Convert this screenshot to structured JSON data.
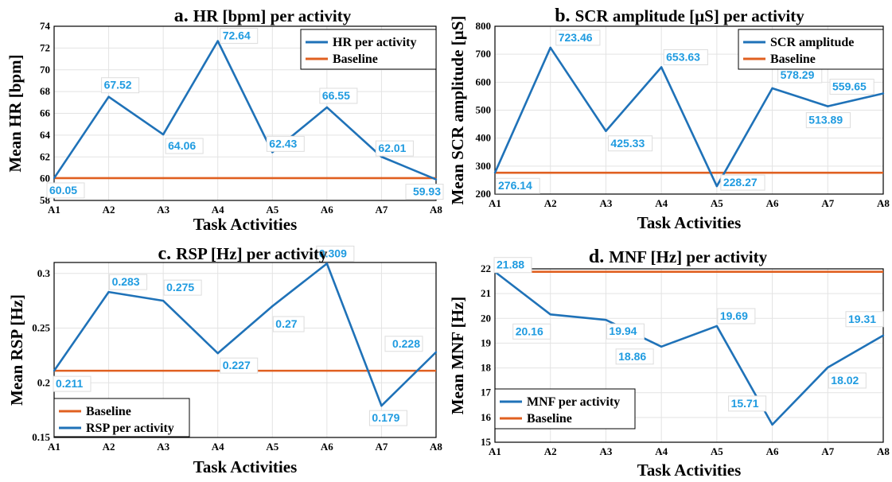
{
  "colors": {
    "series": "#1f72b8",
    "baseline": "#e06020",
    "label": "#1f9be0",
    "grid": "#e3e3e3"
  },
  "chart_data": [
    {
      "panel": "a",
      "type": "line",
      "title_prefix": "a.",
      "title": "HR [bpm] per activity",
      "xlabel": "Task Activities",
      "ylabel": "Mean HR [bpm]",
      "categories": [
        "A1",
        "A2",
        "A3",
        "A4",
        "A5",
        "A6",
        "A7",
        "A8"
      ],
      "ylim": [
        58,
        74
      ],
      "yticks": [
        "58",
        "60",
        "62",
        "64",
        "66",
        "68",
        "70",
        "72",
        "74"
      ],
      "grid": true,
      "legend_position": "top-right",
      "legend_order": [
        "series",
        "baseline"
      ],
      "series": {
        "name": "HR per activity",
        "values": [
          60.05,
          67.52,
          64.06,
          72.64,
          62.43,
          66.55,
          62.01,
          59.93
        ],
        "labels": [
          "60.05",
          "67.52",
          "64.06",
          "72.64",
          "62.43",
          "66.55",
          "62.01",
          "59.93"
        ]
      },
      "baseline": {
        "name": "Baseline",
        "value": 60.05
      }
    },
    {
      "panel": "b",
      "type": "line",
      "title_prefix": "b.",
      "title": "SCR amplitude [µS] per activity",
      "xlabel": "Task Activities",
      "ylabel": "Mean SCR amplitude [µS]",
      "categories": [
        "A1",
        "A2",
        "A3",
        "A4",
        "A5",
        "A6",
        "A7",
        "A8"
      ],
      "ylim": [
        200,
        800
      ],
      "yticks": [
        "200",
        "300",
        "400",
        "500",
        "600",
        "700",
        "800"
      ],
      "grid": true,
      "legend_position": "top-right",
      "legend_order": [
        "series",
        "baseline"
      ],
      "series": {
        "name": "SCR amplitude",
        "values": [
          276.14,
          723.46,
          425.33,
          653.63,
          228.27,
          578.29,
          513.89,
          559.65
        ],
        "labels": [
          "276.14",
          "723.46",
          "425.33",
          "653.63",
          "228.27",
          "578.29",
          "513.89",
          "559.65"
        ]
      },
      "baseline": {
        "name": "Baseline",
        "value": 276.14
      }
    },
    {
      "panel": "c",
      "type": "line",
      "title_prefix": "c.",
      "title": "RSP [Hz] per activity",
      "xlabel": "Task Activities",
      "ylabel": "Mean RSP [Hz]",
      "categories": [
        "A1",
        "A2",
        "A3",
        "A4",
        "A5",
        "A6",
        "A7",
        "A8"
      ],
      "ylim": [
        0.15,
        0.31
      ],
      "yticks": [
        "0.15",
        "0.2",
        "0.25",
        "0.3"
      ],
      "ytick_values": [
        0.15,
        0.2,
        0.25,
        0.3
      ],
      "grid": true,
      "legend_position": "bottom-left",
      "legend_order": [
        "baseline",
        "series"
      ],
      "series": {
        "name": "RSP per activity",
        "values": [
          0.211,
          0.283,
          0.275,
          0.227,
          0.27,
          0.309,
          0.179,
          0.228
        ],
        "labels": [
          "0.211",
          "0.283",
          "0.275",
          "0.227",
          "0.27",
          "0.309",
          "0.179",
          "0.228"
        ]
      },
      "baseline": {
        "name": "Baseline",
        "value": 0.211
      }
    },
    {
      "panel": "d",
      "type": "line",
      "title_prefix": "d.",
      "title": "MNF [Hz] per activity",
      "xlabel": "Task Activities",
      "ylabel": "Mean MNF [Hz]",
      "categories": [
        "A1",
        "A2",
        "A3",
        "A4",
        "A5",
        "A6",
        "A7",
        "A8"
      ],
      "ylim": [
        15,
        22
      ],
      "yticks": [
        "15",
        "16",
        "17",
        "18",
        "19",
        "20",
        "21",
        "22"
      ],
      "grid": true,
      "legend_position": "bottom-left",
      "legend_order": [
        "series",
        "baseline"
      ],
      "series": {
        "name": "MNF per activity",
        "values": [
          21.88,
          20.16,
          19.94,
          18.86,
          19.69,
          15.71,
          18.02,
          19.31
        ],
        "labels": [
          "21.88",
          "20.16",
          "19.94",
          "18.86",
          "19.69",
          "15.71",
          "18.02",
          "19.31"
        ]
      },
      "baseline": {
        "name": "Baseline",
        "value": 21.88
      }
    }
  ]
}
